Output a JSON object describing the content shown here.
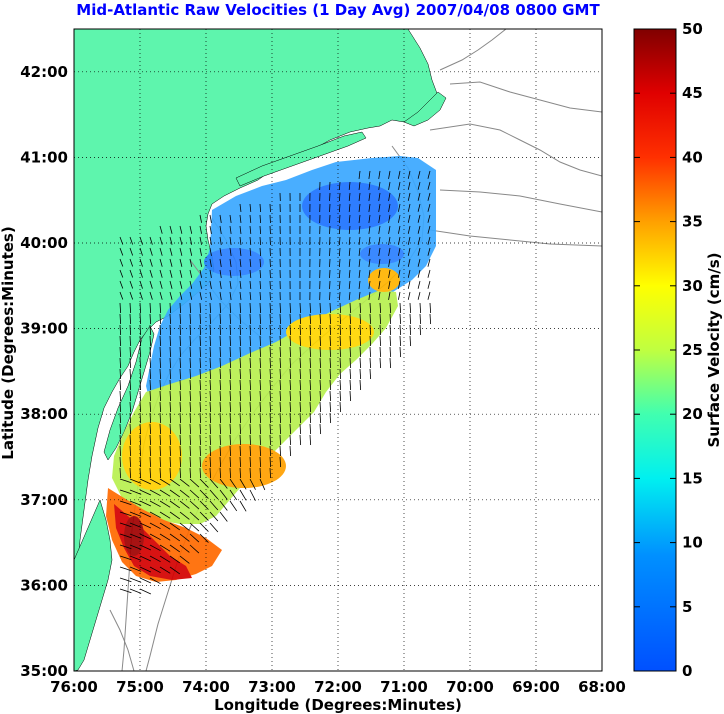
{
  "chart_data": {
    "type": "heatmap",
    "title": "Mid-Atlantic Raw Velocities (1 Day Avg) 2007/04/08 0800 GMT",
    "xlabel": "Longitude (Degrees:Minutes)",
    "ylabel": "Latitude (Degrees:Minutes)",
    "x_ticks": [
      "76:00",
      "75:00",
      "74:00",
      "73:00",
      "72:00",
      "71:00",
      "70:00",
      "69:00",
      "68:00"
    ],
    "y_ticks": [
      "35:00",
      "36:00",
      "37:00",
      "38:00",
      "39:00",
      "40:00",
      "41:00",
      "42:00"
    ],
    "xlim": [
      -76,
      -68
    ],
    "ylim": [
      35,
      42.5
    ],
    "grid": true,
    "colorbar": {
      "label": "Surface Velocity (cm/s)",
      "ticks": [
        "0",
        "5",
        "10",
        "15",
        "20",
        "25",
        "30",
        "35",
        "40",
        "45",
        "50"
      ],
      "range": [
        0,
        50
      ],
      "colormap": "jet"
    },
    "colors": {
      "land": "#5ef5ad",
      "grid": "#000000",
      "title": "#0000ff",
      "bathymetry": "#888888"
    }
  }
}
